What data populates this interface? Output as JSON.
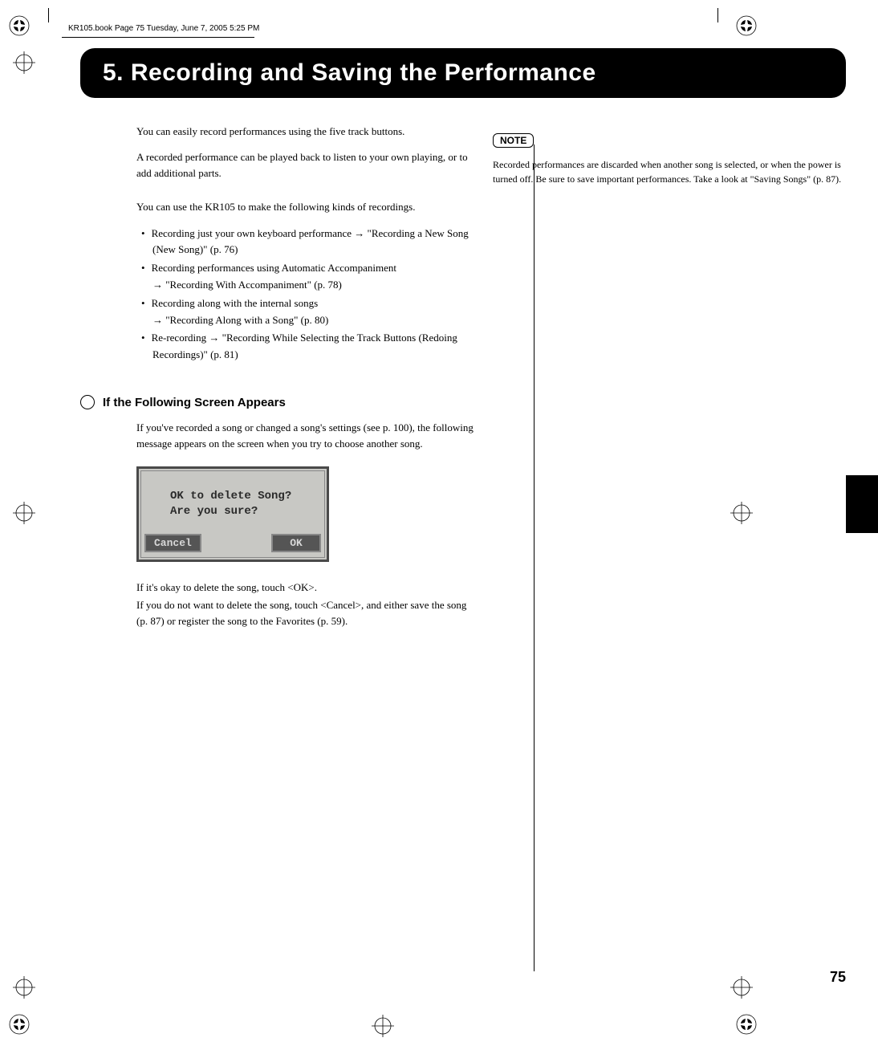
{
  "header_info": "KR105.book  Page 75  Tuesday, June 7, 2005  5:25 PM",
  "chapter_title": "5. Recording and Saving the Performance",
  "intro": {
    "p1": "You can easily record performances using the five track buttons.",
    "p2": "A recorded performance can be played back to listen to your own playing, or to add additional parts.",
    "p3": "You can use the KR105 to make the following kinds of recordings."
  },
  "bullets": [
    "Recording just your own keyboard performance  → \"Recording a New Song (New Song)\" (p. 76)",
    "Recording performances using Automatic Accompaniment\n→ \"Recording With Accompaniment\" (p. 78)",
    "Recording along with the internal songs\n→ \"Recording Along with a Song\" (p. 80)",
    "Re-recording   → \"Recording While Selecting the Track Buttons (Redoing Recordings)\" (p. 81)"
  ],
  "subhead1": "If the Following Screen Appears",
  "sub1_body": "If you've recorded a song or changed a song's settings (see p. 100), the following message appears on the screen when you try to choose another song.",
  "lcd": {
    "line1": "OK to delete Song?",
    "line2": "Are you sure?",
    "cancel_label": "Cancel",
    "ok_label": "OK",
    "bg_color": "#c8c8c4",
    "border_color": "#4a4a4a",
    "button_bg": "#555555",
    "button_fg": "#d8d8d8"
  },
  "after_lcd": {
    "p1": "If it's okay to delete the song, touch <OK>.",
    "p2": "If you do not want to delete the song, touch <Cancel>, and either save the song (p. 87) or register the song to the Favorites (p. 59)."
  },
  "note": {
    "label": "NOTE",
    "text": "Recorded performances are discarded when another song is selected, or when the power is turned off. Be sure to save important performances. Take a look at \"Saving Songs\" (p. 87)."
  },
  "page_number": "75",
  "colors": {
    "page_bg": "#ffffff",
    "title_bg": "#000000",
    "title_fg": "#ffffff",
    "text": "#000000"
  }
}
